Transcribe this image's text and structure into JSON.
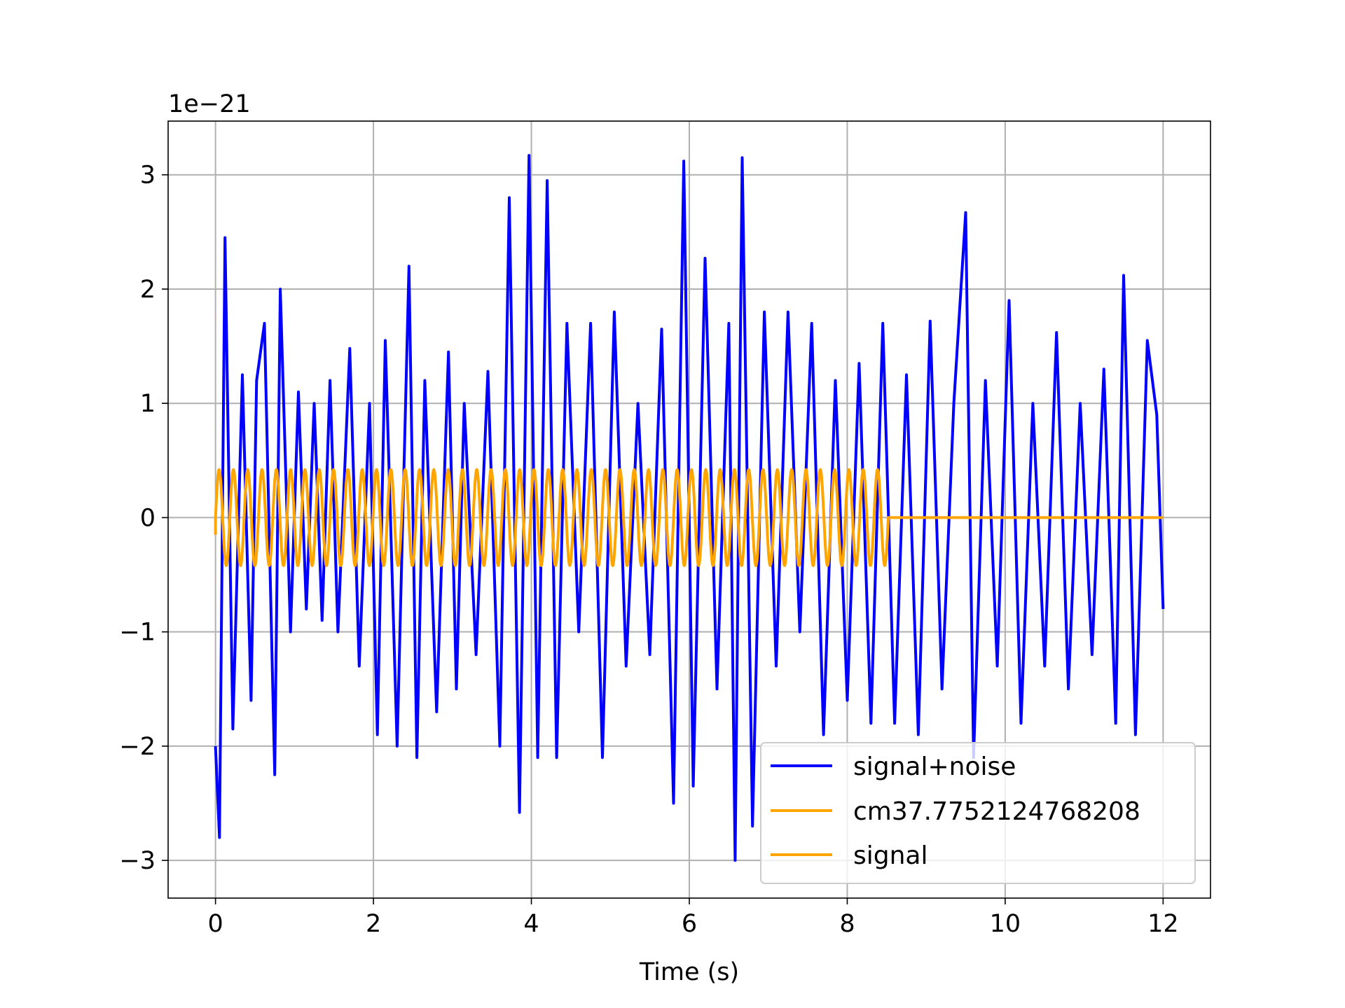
{
  "chart_data": {
    "type": "line",
    "xlabel": "Time (s)",
    "ylabel": "",
    "offset_text": "1e−21",
    "y_scale_factor": 1e-21,
    "xlim": [
      -0.6,
      12.6
    ],
    "ylim": [
      -3.33,
      3.47
    ],
    "x_ticks": [
      0,
      2,
      4,
      6,
      8,
      10,
      12
    ],
    "x_tick_labels": [
      "0",
      "2",
      "4",
      "6",
      "8",
      "10",
      "12"
    ],
    "y_ticks": [
      -3,
      -2,
      -1,
      0,
      1,
      2,
      3
    ],
    "y_tick_labels": [
      "−3",
      "−2",
      "−1",
      "0",
      "1",
      "2",
      "3"
    ],
    "grid": true,
    "legend_position": "lower-right",
    "series": [
      {
        "name": "signal+noise",
        "color": "#0000ff",
        "x": [
          0.0,
          0.05,
          0.12,
          0.22,
          0.34,
          0.45,
          0.52,
          0.62,
          0.75,
          0.82,
          0.95,
          1.05,
          1.15,
          1.25,
          1.35,
          1.45,
          1.55,
          1.7,
          1.82,
          1.95,
          2.05,
          2.15,
          2.3,
          2.45,
          2.55,
          2.65,
          2.8,
          2.95,
          3.05,
          3.15,
          3.3,
          3.45,
          3.6,
          3.72,
          3.85,
          3.97,
          4.08,
          4.2,
          4.32,
          4.45,
          4.6,
          4.75,
          4.9,
          5.05,
          5.2,
          5.35,
          5.5,
          5.65,
          5.8,
          5.93,
          6.05,
          6.2,
          6.35,
          6.5,
          6.58,
          6.67,
          6.8,
          6.95,
          7.1,
          7.25,
          7.4,
          7.55,
          7.7,
          7.85,
          8.0,
          8.15,
          8.3,
          8.45,
          8.6,
          8.75,
          8.9,
          9.05,
          9.2,
          9.35,
          9.5,
          9.6,
          9.75,
          9.9,
          10.05,
          10.2,
          10.35,
          10.5,
          10.65,
          10.8,
          10.95,
          11.1,
          11.25,
          11.4,
          11.5,
          11.65,
          11.8,
          11.92,
          12.0
        ],
        "values": [
          -2.0,
          -2.8,
          2.45,
          -1.85,
          1.25,
          -1.6,
          1.2,
          1.7,
          -2.25,
          2.0,
          -1.0,
          1.1,
          -0.8,
          1.0,
          -0.9,
          1.2,
          -1.0,
          1.48,
          -1.3,
          1.0,
          -1.9,
          1.55,
          -2.0,
          2.2,
          -2.1,
          1.2,
          -1.7,
          1.45,
          -1.5,
          1.0,
          -1.2,
          1.28,
          -2.0,
          2.8,
          -2.58,
          3.17,
          -2.1,
          2.95,
          -2.1,
          1.7,
          -1.0,
          1.7,
          -2.1,
          1.8,
          -1.3,
          1.0,
          -1.2,
          1.65,
          -2.5,
          3.12,
          -2.35,
          2.27,
          -1.5,
          1.7,
          -3.0,
          3.15,
          -2.7,
          1.8,
          -1.3,
          1.8,
          -1.0,
          1.7,
          -1.9,
          1.2,
          -1.6,
          1.35,
          -1.8,
          1.7,
          -1.8,
          1.25,
          -1.9,
          1.72,
          -1.5,
          1.0,
          2.67,
          -2.1,
          1.2,
          -1.3,
          1.9,
          -1.8,
          1.0,
          -1.3,
          1.62,
          -1.5,
          1.0,
          -1.2,
          1.3,
          -1.8,
          2.12,
          -1.9,
          1.55,
          0.9,
          -0.8
        ]
      },
      {
        "name": "cm37.7752124768208",
        "color": "#ffa500"
      },
      {
        "name": "signal",
        "color": "#ffa500",
        "amplitude": 0.42,
        "cycles": 47,
        "t_start": 0.0,
        "t_end": 8.52,
        "t_final": 12.0,
        "initial_value": -0.15
      }
    ]
  }
}
